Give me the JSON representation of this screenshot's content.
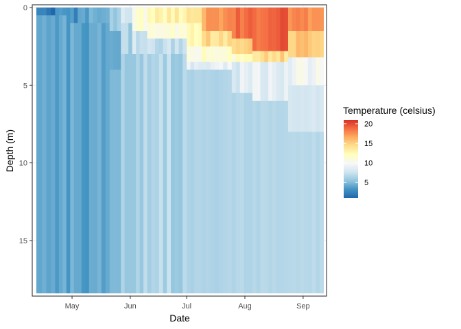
{
  "chart_data": {
    "type": "heatmap",
    "title": "",
    "xlabel": "Date",
    "ylabel": "Depth (m)",
    "x_ticks": [
      {
        "label": "May",
        "date": "2019-05-01"
      },
      {
        "label": "Jun",
        "date": "2019-06-01"
      },
      {
        "label": "Jul",
        "date": "2019-07-01"
      },
      {
        "label": "Aug",
        "date": "2019-08-01"
      },
      {
        "label": "Sep",
        "date": "2019-09-01"
      }
    ],
    "x_range": [
      "2019-04-12",
      "2019-09-12"
    ],
    "y_ticks": [
      0,
      5,
      10,
      15
    ],
    "y_range": [
      0,
      18.4
    ],
    "y_reversed": true,
    "legend": {
      "title": "Temperature (celsius)",
      "position": "right",
      "ticks": [
        5,
        10,
        15,
        20
      ],
      "range": [
        1,
        21
      ],
      "colors": [
        "#2166ac",
        "#4393c3",
        "#92c5de",
        "#d1e5f0",
        "#f7f7f7",
        "#ffffbf",
        "#fee090",
        "#fdae61",
        "#f46d43",
        "#d73027"
      ]
    },
    "grid": true,
    "background": "#ffffff",
    "periods": [
      {
        "start": "2019-04-12",
        "end": "2019-04-15",
        "layers": [
          [
            0,
            0.5,
            3.0
          ],
          [
            0.5,
            18.4,
            3.6
          ]
        ]
      },
      {
        "start": "2019-04-15",
        "end": "2019-04-22",
        "layers": [
          [
            0,
            0.5,
            1.8
          ],
          [
            0.5,
            18.4,
            3.6
          ]
        ]
      },
      {
        "start": "2019-04-22",
        "end": "2019-04-30",
        "layers": [
          [
            0,
            0.5,
            2.6
          ],
          [
            0.5,
            18.4,
            3.9
          ]
        ]
      },
      {
        "start": "2019-04-30",
        "end": "2019-05-10",
        "layers": [
          [
            0,
            1.0,
            3.2
          ],
          [
            1.0,
            18.4,
            4.2
          ]
        ]
      },
      {
        "start": "2019-05-10",
        "end": "2019-05-21",
        "layers": [
          [
            0,
            1.0,
            4.0
          ],
          [
            1.0,
            18.4,
            4.5
          ]
        ]
      },
      {
        "start": "2019-05-21",
        "end": "2019-05-27",
        "layers": [
          [
            0,
            1.5,
            5.8
          ],
          [
            1.5,
            4.0,
            5.2
          ],
          [
            4.0,
            18.4,
            4.9
          ]
        ]
      },
      {
        "start": "2019-05-27",
        "end": "2019-06-02",
        "layers": [
          [
            0,
            1.0,
            8.0
          ],
          [
            1.0,
            3.0,
            6.5
          ],
          [
            3.0,
            18.4,
            5.4
          ]
        ]
      },
      {
        "start": "2019-06-02",
        "end": "2019-06-10",
        "layers": [
          [
            0,
            1.5,
            11.0
          ],
          [
            1.5,
            3.0,
            7.5
          ],
          [
            3.0,
            18.4,
            6.2
          ]
        ]
      },
      {
        "start": "2019-06-10",
        "end": "2019-07-01",
        "layers": [
          [
            0,
            1.0,
            13.0
          ],
          [
            1.0,
            2.0,
            11.0
          ],
          [
            2.0,
            3.0,
            7.0
          ],
          [
            3.0,
            18.4,
            6.5
          ]
        ]
      },
      {
        "start": "2019-07-01",
        "end": "2019-07-09",
        "layers": [
          [
            0,
            1.0,
            14.5
          ],
          [
            1.0,
            2.5,
            12.0
          ],
          [
            2.5,
            3.5,
            10.5
          ],
          [
            3.5,
            4.0,
            8.5
          ],
          [
            4.0,
            18.4,
            6.5
          ]
        ]
      },
      {
        "start": "2019-07-09",
        "end": "2019-07-25",
        "layers": [
          [
            0,
            1.5,
            17.0
          ],
          [
            1.5,
            2.5,
            14.5
          ],
          [
            2.5,
            3.5,
            11.5
          ],
          [
            3.5,
            4.0,
            9.0
          ],
          [
            4.0,
            18.4,
            6.5
          ]
        ]
      },
      {
        "start": "2019-07-25",
        "end": "2019-08-05",
        "layers": [
          [
            0,
            2.0,
            18.5
          ],
          [
            2.0,
            3.0,
            15.5
          ],
          [
            3.0,
            3.5,
            11.5
          ],
          [
            3.5,
            5.5,
            8.5
          ],
          [
            5.5,
            18.4,
            6.6
          ]
        ]
      },
      {
        "start": "2019-08-05",
        "end": "2019-08-24",
        "layers": [
          [
            0,
            2.8,
            19.0
          ],
          [
            2.8,
            3.5,
            14.5
          ],
          [
            3.5,
            6.0,
            9.0
          ],
          [
            6.0,
            18.4,
            6.7
          ]
        ]
      },
      {
        "start": "2019-08-24",
        "end": "2019-09-12",
        "layers": [
          [
            0,
            1.5,
            17.5
          ],
          [
            1.5,
            3.2,
            15.5
          ],
          [
            3.2,
            5.0,
            9.5
          ],
          [
            5.0,
            8.0,
            8.0
          ],
          [
            8.0,
            18.4,
            6.8
          ]
        ]
      }
    ]
  }
}
